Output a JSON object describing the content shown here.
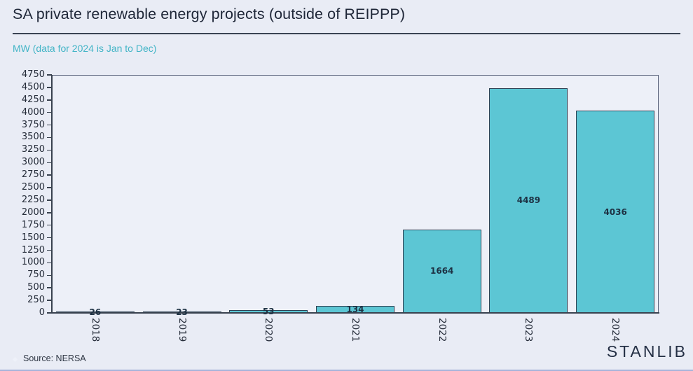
{
  "header": {
    "title": "SA private renewable energy projects (outside of REIPPP)",
    "subtitle": "MW (data for 2024 is Jan to Dec)"
  },
  "footer": {
    "source": "Source: NERSA",
    "brand": "STANLIB"
  },
  "colors": {
    "background": "#e9ecf5",
    "plot_background": "#edf0f8",
    "bar_fill": "#5cc6d4",
    "bar_border": "#2f4254",
    "axis": "#39424f",
    "frame": "#59627a",
    "title_text": "#1f2738",
    "subtitle_text": "#41b4c6",
    "tick_text": "#262d3a",
    "value_label_text": "#1d3143",
    "source_text": "#303845",
    "brand_text": "#242f44",
    "bullet": "#eef1f9",
    "footer_rule": "#a7b4da",
    "title_rule": "#3a4353"
  },
  "chart_data": {
    "type": "bar",
    "title": "SA private renewable energy projects (outside of REIPPP)",
    "subtitle": "MW (data for 2024 is Jan to Dec)",
    "categories": [
      "2018",
      "2019",
      "2020",
      "2021",
      "2022",
      "2023",
      "2024"
    ],
    "values": [
      26,
      23,
      53,
      134,
      1664,
      4489,
      4036
    ],
    "xlabel": "",
    "ylabel": "MW",
    "ylim": [
      0,
      4750
    ],
    "ytick_step": 250,
    "grid": false,
    "legend": false,
    "bar_labels": true,
    "x_tick_rotation_deg": 90,
    "source": "Source: NERSA"
  }
}
